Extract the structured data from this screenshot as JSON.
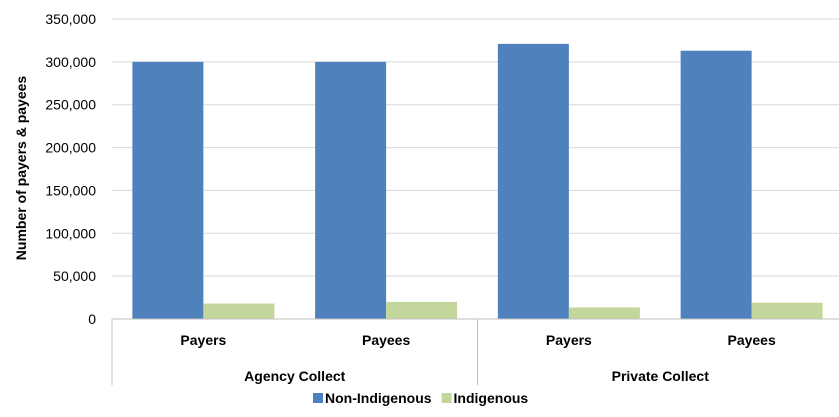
{
  "chart_data": {
    "type": "bar",
    "ylabel": "Number of payers & payees",
    "ylim": [
      0,
      350000
    ],
    "ytick_step": 50000,
    "ytick_labels": [
      "0",
      "50,000",
      "100,000",
      "150,000",
      "200,000",
      "250,000",
      "300,000",
      "350,000"
    ],
    "grid": true,
    "legend_position": "bottom",
    "groups": [
      {
        "label": "Agency Collect",
        "categories": [
          "Payers",
          "Payees"
        ]
      },
      {
        "label": "Private Collect",
        "categories": [
          "Payers",
          "Payees"
        ]
      }
    ],
    "series": [
      {
        "name": "Non-Indigenous",
        "color": "#4F81BD",
        "values": [
          300000,
          300000,
          321000,
          313000
        ]
      },
      {
        "name": "Indigenous",
        "color": "#C3D69B",
        "values": [
          18000,
          20000,
          13500,
          19000
        ]
      }
    ]
  }
}
